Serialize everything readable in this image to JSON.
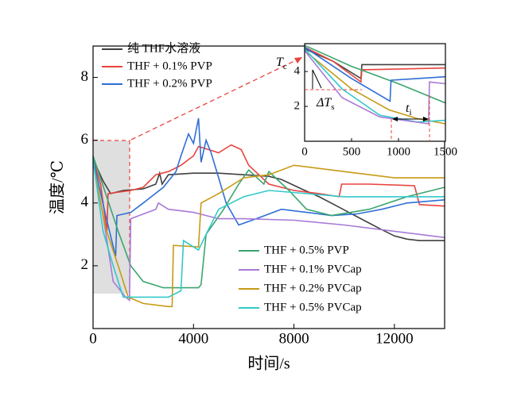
{
  "chart_data": [
    {
      "type": "line",
      "xlabel": "时间/s",
      "ylabel": "温度/℃",
      "xlim": [
        0,
        14000
      ],
      "ylim": [
        0,
        9
      ],
      "xticks": [
        0,
        4000,
        8000,
        12000
      ],
      "yticks": [
        2,
        4,
        6,
        8
      ],
      "series": [
        {
          "name": "纯 THF水溶液",
          "color": "#404040",
          "x": [
            0,
            400,
            700,
            1200,
            2000,
            2500,
            2650,
            2750,
            3000,
            4000,
            5000,
            6000,
            7000,
            7500,
            8300,
            9000,
            9600,
            10300,
            10900,
            11500,
            12000,
            12500,
            13000,
            14000
          ],
          "values": [
            5.4,
            4.7,
            4.3,
            4.4,
            4.45,
            4.6,
            4.95,
            4.6,
            4.9,
            4.95,
            4.95,
            4.9,
            4.85,
            4.75,
            4.45,
            4.2,
            3.95,
            3.65,
            3.4,
            3.15,
            2.95,
            2.85,
            2.8,
            2.8
          ]
        },
        {
          "name": "THF + 0.1% PVP",
          "color": "#e8443e",
          "x": [
            0,
            300,
            550,
            600,
            1500,
            2000,
            2500,
            3000,
            3500,
            4000,
            4200,
            4600,
            5000,
            5500,
            5900,
            6200,
            7000,
            8000,
            9000,
            9800,
            9900,
            11000,
            12800,
            13000,
            14000
          ],
          "values": [
            5.4,
            4.6,
            3.1,
            4.3,
            4.4,
            4.5,
            4.9,
            5.0,
            5.2,
            5.5,
            5.8,
            5.7,
            5.6,
            5.85,
            5.7,
            5.2,
            4.6,
            4.4,
            4.3,
            4.2,
            4.6,
            4.6,
            4.55,
            3.95,
            3.9
          ]
        },
        {
          "name": "THF + 0.2% PVP",
          "color": "#2f6fd6",
          "x": [
            0,
            500,
            900,
            950,
            1500,
            2000,
            2800,
            3300,
            3500,
            3800,
            4000,
            4200,
            4300,
            4500,
            4700,
            5000,
            5300,
            5800,
            6500,
            7500,
            8500,
            9500,
            10500,
            11500,
            12500,
            14000
          ],
          "values": [
            5.4,
            3.6,
            2.3,
            3.6,
            3.7,
            4.0,
            4.5,
            5.0,
            5.5,
            6.2,
            5.9,
            6.7,
            5.3,
            6.0,
            5.6,
            4.8,
            4.0,
            3.3,
            3.5,
            3.8,
            3.7,
            3.6,
            3.65,
            3.8,
            4.0,
            4.1
          ]
        },
        {
          "name": "THF + 0.5% PVP",
          "color": "#3aa56d",
          "x": [
            0,
            500,
            1000,
            1500,
            2000,
            2800,
            3500,
            4200,
            4300,
            4500,
            5200,
            5800,
            6200,
            6800,
            7000,
            7800,
            8500,
            9500,
            11000,
            12500,
            14000
          ],
          "values": [
            5.5,
            4.3,
            3.1,
            2.0,
            1.5,
            1.3,
            1.3,
            1.3,
            1.4,
            3.0,
            3.8,
            4.6,
            5.05,
            4.6,
            5.0,
            4.4,
            3.8,
            3.6,
            3.8,
            4.2,
            4.5
          ]
        },
        {
          "name": "THF + 0.1% PVCap",
          "color": "#a87ad8",
          "x": [
            0,
            400,
            800,
            1300,
            1450,
            1500,
            2500,
            2600,
            3000,
            4000,
            5000,
            6000,
            8000,
            10000,
            12000,
            14000
          ],
          "values": [
            5.3,
            3.6,
            1.5,
            1.0,
            0.9,
            3.5,
            3.8,
            4.0,
            3.8,
            3.7,
            3.5,
            3.5,
            3.45,
            3.3,
            3.1,
            2.9
          ]
        },
        {
          "name": "THF + 0.2% PVCap",
          "color": "#c79a16",
          "x": [
            0,
            500,
            1000,
            1400,
            2000,
            3000,
            3150,
            3200,
            4200,
            4300,
            5000,
            6000,
            7000,
            8000,
            10000,
            12000,
            14000
          ],
          "values": [
            5.3,
            3.2,
            2.0,
            1.0,
            0.8,
            0.7,
            0.7,
            2.65,
            2.6,
            4.0,
            4.3,
            4.8,
            4.9,
            5.2,
            5.0,
            4.8,
            4.8
          ]
        },
        {
          "name": "THF + 0.5% PVCap",
          "color": "#33c9c9",
          "x": [
            0,
            400,
            800,
            1200,
            2000,
            3000,
            3500,
            3600,
            4200,
            4500,
            5000,
            5500,
            6000,
            7000,
            8500,
            10000,
            12000,
            14000
          ],
          "values": [
            5.4,
            3.1,
            2.0,
            1.0,
            1.0,
            1.0,
            1.2,
            2.8,
            2.5,
            3.0,
            3.8,
            4.0,
            4.2,
            4.4,
            4.3,
            4.2,
            4.2,
            4.2
          ]
        }
      ]
    },
    {
      "type": "line",
      "xlim": [
        0,
        1500
      ],
      "ylim": [
        0,
        5.6
      ],
      "xticks": [
        0,
        500,
        1000,
        1500
      ],
      "yticks": [
        2,
        4
      ],
      "annotations": [
        {
          "text": "T",
          "sub": "c"
        },
        {
          "text": "ΔT",
          "sub": "s"
        },
        {
          "text": "t",
          "sub": "i"
        }
      ],
      "series": [
        {
          "color": "#404040",
          "x": [
            0,
            300,
            600,
            610,
            1500
          ],
          "values": [
            5.3,
            4.6,
            3.6,
            4.4,
            4.4
          ]
        },
        {
          "color": "#e8443e",
          "x": [
            0,
            300,
            600,
            610,
            1500
          ],
          "values": [
            5.4,
            4.6,
            3.4,
            4.1,
            4.2
          ]
        },
        {
          "color": "#3aa56d",
          "x": [
            0,
            500,
            1000,
            1500
          ],
          "values": [
            5.5,
            4.3,
            3.3,
            2.2
          ]
        },
        {
          "color": "#2f6fd6",
          "x": [
            0,
            500,
            910,
            920,
            1500
          ],
          "values": [
            5.4,
            3.6,
            2.3,
            3.5,
            3.7
          ]
        },
        {
          "color": "#c79a16",
          "x": [
            0,
            500,
            900,
            1200,
            1500
          ],
          "values": [
            5.2,
            3.0,
            1.8,
            1.3,
            1.0
          ]
        },
        {
          "color": "#33c9c9",
          "x": [
            0,
            400,
            800,
            1200,
            1500
          ],
          "values": [
            5.3,
            3.0,
            1.5,
            1.1,
            1.2
          ]
        },
        {
          "color": "#a87ad8",
          "x": [
            0,
            400,
            800,
            1320,
            1330,
            1500
          ],
          "values": [
            5.2,
            2.5,
            1.4,
            1.0,
            3.4,
            3.3
          ]
        }
      ]
    }
  ]
}
